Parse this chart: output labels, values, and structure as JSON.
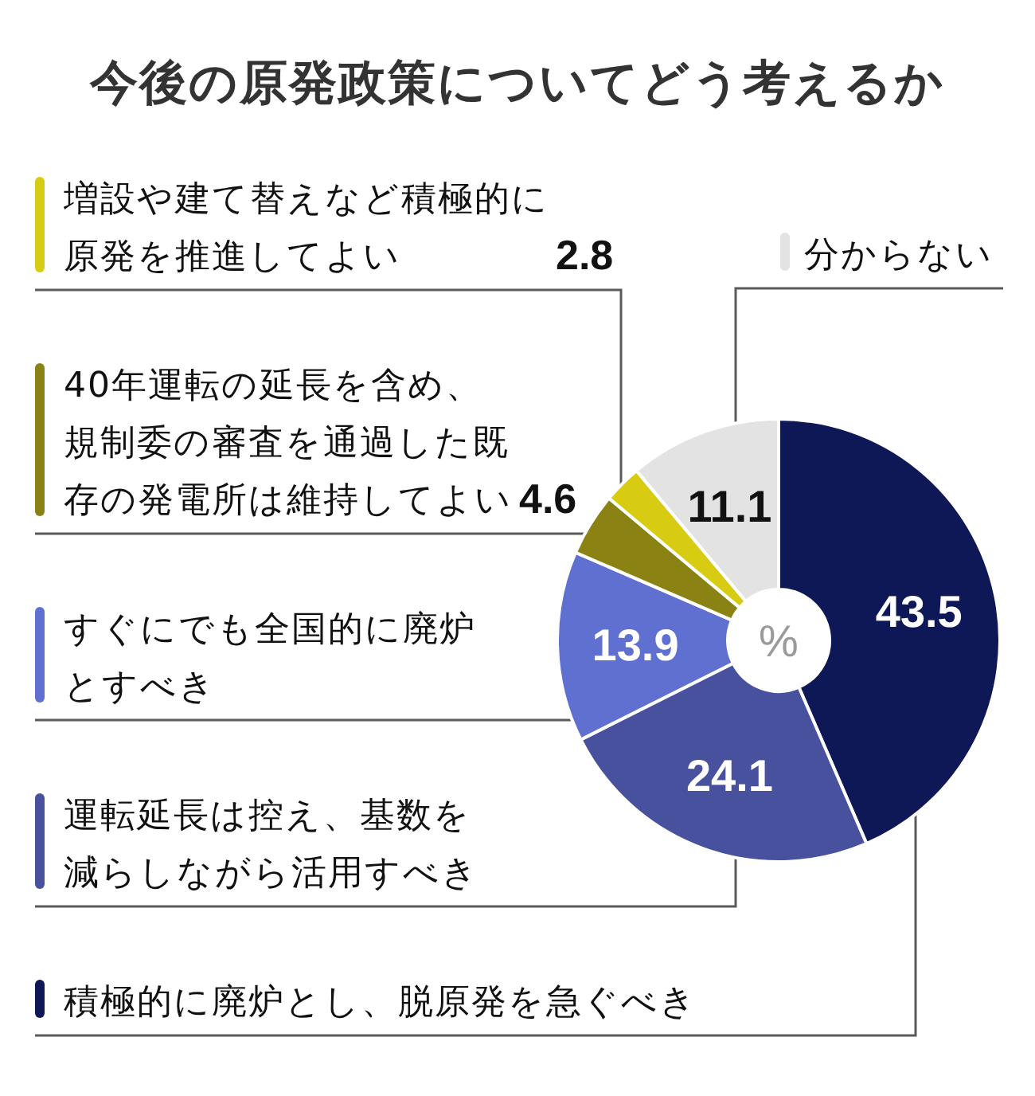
{
  "chart_data": {
    "type": "donut",
    "title": "今後の原発政策についてどう考えるか",
    "categories": [
      "積極的に廃炉とし、脱原発を急ぐべき",
      "運転延長は控え、基数を減らしながら活用すべき",
      "すぐにでも全国的に廃炉とすべき",
      "40年運転の延長を含め、規制委の審査を通過した既存の発電所は維持してよい",
      "増設や建て替えなど積極的に原発を推進してよい",
      "分からない"
    ],
    "values": [
      43.5,
      24.1,
      13.9,
      4.6,
      2.8,
      11.1
    ],
    "colors": [
      "#0f1856",
      "#47519e",
      "#6070d0",
      "#8a8313",
      "#d8cc12",
      "#e3e3e3"
    ],
    "data_labels": true,
    "legend": "left",
    "annotations": [
      "%"
    ]
  }
}
